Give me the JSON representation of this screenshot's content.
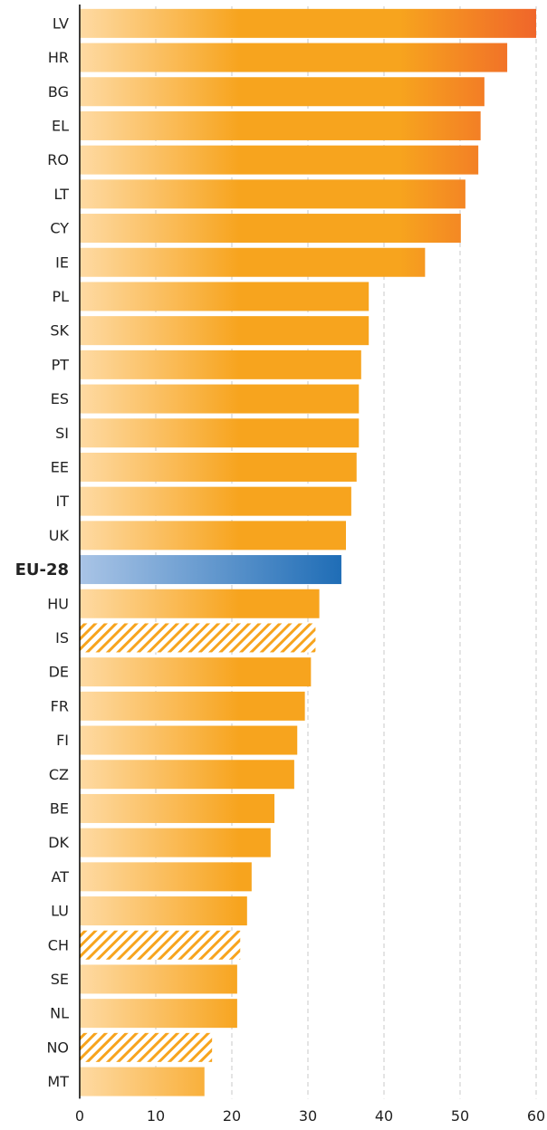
{
  "chart_data": {
    "type": "barh",
    "categories": [
      "LV",
      "HR",
      "BG",
      "EL",
      "RO",
      "LT",
      "CY",
      "IE",
      "PL",
      "SK",
      "PT",
      "ES",
      "SI",
      "EE",
      "IT",
      "UK",
      "EU-28",
      "HU",
      "IS",
      "DE",
      "FR",
      "FI",
      "CZ",
      "BE",
      "DK",
      "AT",
      "LU",
      "CH",
      "SE",
      "NL",
      "NO",
      "MT"
    ],
    "values": [
      60,
      56.2,
      53.2,
      52.7,
      52.4,
      50.7,
      50.1,
      45.4,
      38.0,
      38.0,
      37.0,
      36.7,
      36.7,
      36.4,
      35.7,
      35.0,
      34.4,
      31.5,
      31.0,
      30.4,
      29.6,
      28.6,
      28.2,
      25.6,
      25.1,
      22.6,
      22.0,
      21.1,
      20.7,
      20.7,
      17.4,
      16.4
    ],
    "bar_styles": [
      "normal",
      "normal",
      "normal",
      "normal",
      "normal",
      "normal",
      "normal",
      "normal",
      "normal",
      "normal",
      "normal",
      "normal",
      "normal",
      "normal",
      "normal",
      "normal",
      "highlight",
      "normal",
      "hatched",
      "normal",
      "normal",
      "normal",
      "normal",
      "normal",
      "normal",
      "normal",
      "normal",
      "hatched",
      "normal",
      "normal",
      "hatched",
      "normal"
    ],
    "colors": {
      "normal": [
        "#fedaa3",
        "#f7a41e",
        "#f7a41e",
        "#f0662a"
      ],
      "highlight": [
        "#a9c4e6",
        "#1f6db6"
      ],
      "hatched": "#f7a41e"
    },
    "xlim": [
      0,
      60
    ],
    "xticks": [
      0,
      10,
      20,
      30,
      40,
      50,
      60
    ],
    "grid": true
  }
}
